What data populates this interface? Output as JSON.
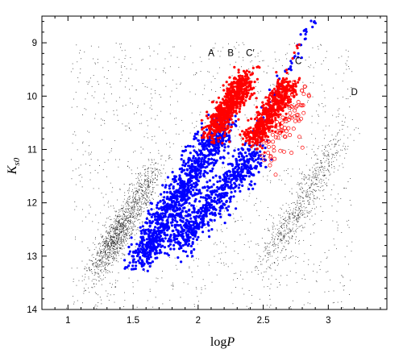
{
  "chart_data": {
    "type": "scatter",
    "title": "",
    "xlabel_main": "log",
    "xlabel_var": "P",
    "ylabel_main": "K",
    "ylabel_sub": "s0",
    "xlim": [
      0.8,
      3.45
    ],
    "ylim": [
      14,
      8.5
    ],
    "y_inverted": true,
    "grid": false,
    "x_ticks": [
      1,
      1.5,
      2,
      2.5,
      3
    ],
    "x_tick_labels": [
      "1",
      "1.5",
      "2",
      "2.5",
      "3"
    ],
    "y_ticks": [
      9,
      10,
      11,
      12,
      13,
      14
    ],
    "y_tick_labels": [
      "9",
      "10",
      "11",
      "12",
      "13",
      "14"
    ],
    "sequence_labels": [
      {
        "text": "A",
        "x": 2.1,
        "y": 9.25
      },
      {
        "text": "B",
        "x": 2.25,
        "y": 9.25
      },
      {
        "text": "C′",
        "x": 2.4,
        "y": 9.25
      },
      {
        "text": "C",
        "x": 2.77,
        "y": 9.4
      },
      {
        "text": "D",
        "x": 3.2,
        "y": 9.98
      }
    ],
    "series": [
      {
        "marker": "dot-small",
        "color": "#000000",
        "description_values": "background field stars, dense clumps along sequences",
        "clusters": [
          {
            "x_center": 1.35,
            "y_center": 12.7,
            "spread_x": 0.09,
            "spread_y": 0.45,
            "slope": -3.2,
            "n": 900
          },
          {
            "x_center": 1.55,
            "y_center": 11.9,
            "spread_x": 0.1,
            "spread_y": 0.55,
            "slope": -3.3,
            "n": 500
          },
          {
            "x_center": 2.7,
            "y_center": 12.4,
            "spread_x": 0.12,
            "spread_y": 0.6,
            "slope": -3.0,
            "n": 450
          },
          {
            "x_center": 2.95,
            "y_center": 11.3,
            "spread_x": 0.1,
            "spread_y": 0.5,
            "slope": -3.0,
            "n": 250
          },
          {
            "x_center": 2.1,
            "y_center": 11.5,
            "spread_x": 0.6,
            "spread_y": 1.4,
            "slope": 0,
            "n": 1200
          }
        ]
      },
      {
        "marker": "filled-circle",
        "color": "#0000ff",
        "clusters": [
          {
            "x_start": 1.55,
            "y_start": 13.1,
            "x_end": 2.2,
            "y_end": 10.5,
            "width": 0.06,
            "n": 1100
          },
          {
            "x_start": 1.85,
            "y_start": 12.8,
            "x_end": 2.45,
            "y_end": 11.0,
            "width": 0.06,
            "n": 650
          },
          {
            "x_start": 2.45,
            "y_start": 10.6,
            "x_end": 2.9,
            "y_end": 8.55,
            "width": 0.02,
            "n": 60
          }
        ]
      },
      {
        "marker": "filled-circle",
        "color": "#ff0000",
        "clusters": [
          {
            "x_start": 2.12,
            "y_start": 10.7,
            "x_end": 2.37,
            "y_end": 9.65,
            "width": 0.05,
            "n": 700
          },
          {
            "x_start": 2.42,
            "y_start": 10.85,
            "x_end": 2.7,
            "y_end": 9.75,
            "width": 0.045,
            "n": 520
          },
          {
            "x_start": 2.72,
            "y_start": 9.3,
            "x_end": 2.77,
            "y_end": 9.05,
            "width": 0.01,
            "n": 5
          }
        ]
      },
      {
        "marker": "open-circle",
        "color": "#ff0000",
        "clusters": [
          {
            "x_start": 2.55,
            "y_start": 11.2,
            "x_end": 2.78,
            "y_end": 9.9,
            "width": 0.06,
            "n": 90
          }
        ]
      }
    ]
  }
}
